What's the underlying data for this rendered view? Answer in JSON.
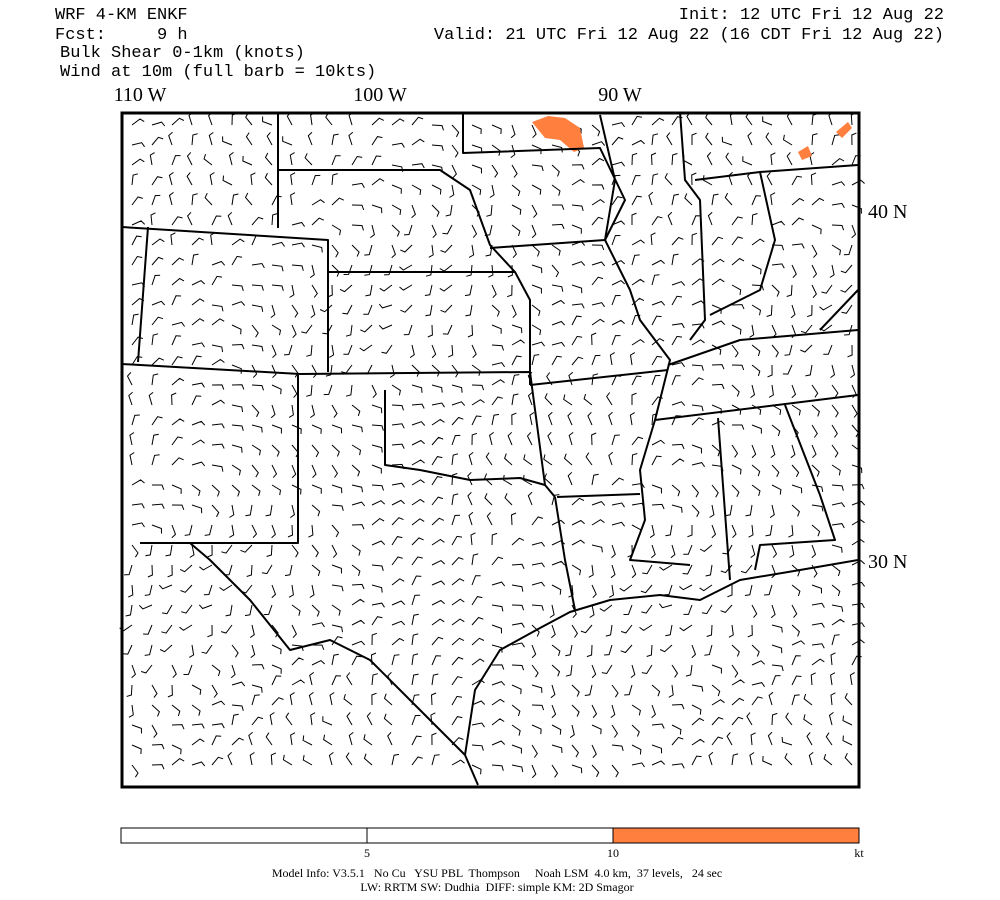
{
  "header": {
    "model": "WRF 4-KM ENKF",
    "forecast": "Fcst:     9 h",
    "field": "Bulk Shear 0-1km (knots)",
    "wind": "Wind at 10m (full barb = 10kts)",
    "init": "Init: 12 UTC Fri 12 Aug 22",
    "valid": "Valid: 21 UTC Fri 12 Aug 22 (16 CDT Fri 12 Aug 22)"
  },
  "map": {
    "longitude_labels": [
      "110 W",
      "100 W",
      "90 W"
    ],
    "latitude_labels": [
      "40 N",
      "30 N"
    ]
  },
  "colorbar": {
    "ticks": [
      5,
      10
    ],
    "unit": "kt",
    "colors": [
      "#ffffff",
      "#ffffff",
      "#ff7f3f"
    ]
  },
  "footer": {
    "line1": "Model Info: V3.5.1   No Cu   YSU PBL  Thompson     Noah LSM  4.0 km,  37 levels,   24 sec",
    "line2": "LW: RRTM SW: Dudhia  DIFF: simple KM: 2D Smagor"
  }
}
